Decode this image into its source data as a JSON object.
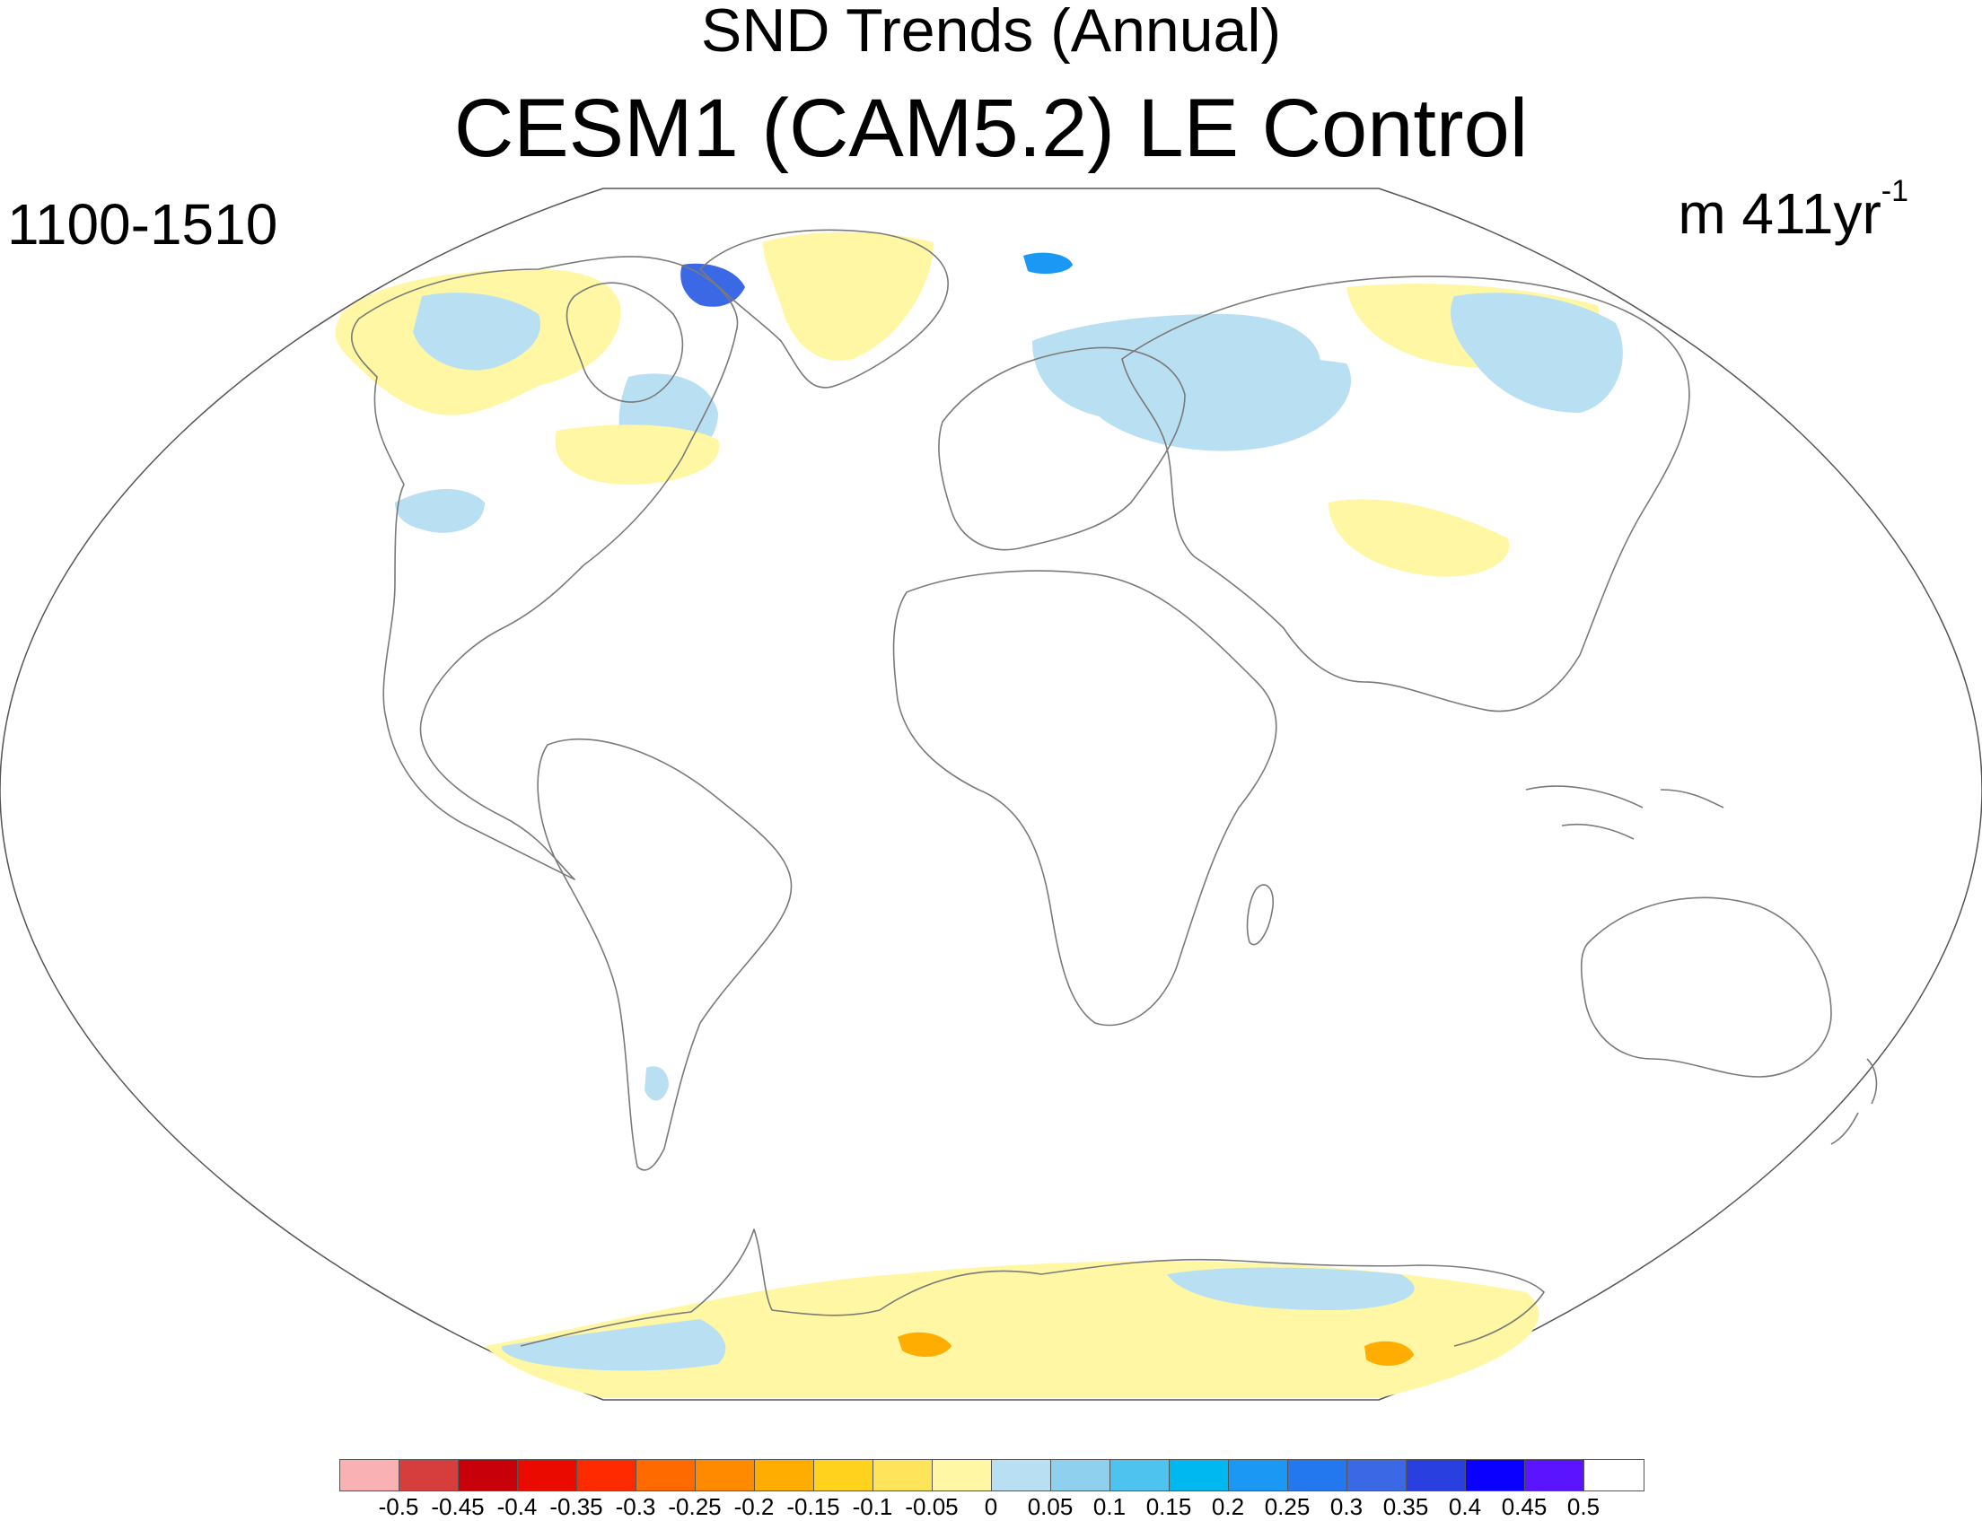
{
  "titles": {
    "top": "SND Trends (Annual)",
    "main": "CESM1 (CAM5.2) LE Control",
    "left_string": "1100-1510",
    "right_string_base": "m 411yr",
    "right_string_exp": "-1"
  },
  "map": {
    "projection": "Robinson (global, Atlantic-centered)",
    "continent_outline_color": "#7a7a7a",
    "ocean_color": "#ffffff",
    "missing_color": "#ffffff"
  },
  "colorbar": {
    "labels": [
      "-0.5",
      "-0.45",
      "-0.4",
      "-0.35",
      "-0.3",
      "-0.25",
      "-0.2",
      "-0.15",
      "-0.1",
      "-0.05",
      "0",
      "0.05",
      "0.1",
      "0.15",
      "0.2",
      "0.25",
      "0.3",
      "0.35",
      "0.4",
      "0.45",
      "0.5"
    ],
    "colors": [
      "#f9b1b4",
      "#d63e3e",
      "#c8000a",
      "#ea0a00",
      "#ff2a00",
      "#ff6a00",
      "#ff8a00",
      "#ffad00",
      "#ffd21e",
      "#fde45a",
      "#fff7a4",
      "#b9e0f2",
      "#8fd0ee",
      "#4fc3f0",
      "#00b8f0",
      "#1a98f4",
      "#2478ef",
      "#3b68e4",
      "#2a3fe0",
      "#0a00ff",
      "#5b14ff",
      "#ffffff"
    ]
  }
}
